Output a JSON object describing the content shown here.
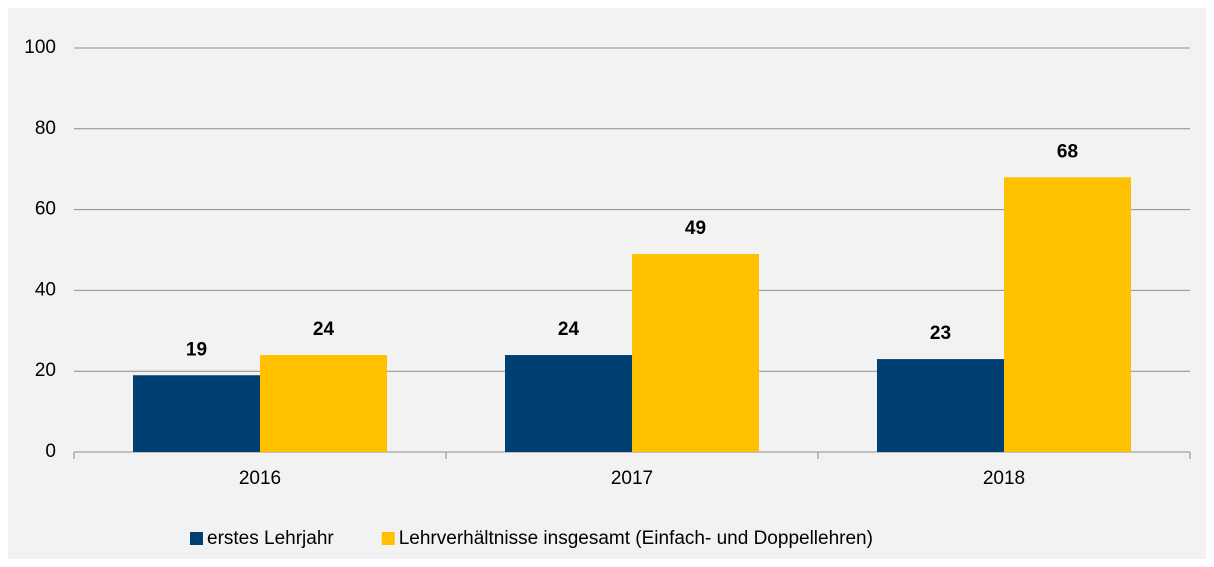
{
  "chart_data": {
    "type": "bar",
    "categories": [
      "2016",
      "2017",
      "2018"
    ],
    "series": [
      {
        "name": "erstes Lehrjahr",
        "color": "#003f72",
        "values": [
          19,
          24,
          23
        ]
      },
      {
        "name": "Lehrverhältnisse insgesamt (Einfach- und Doppellehren)",
        "color": "#ffc000",
        "values": [
          24,
          49,
          68
        ]
      }
    ],
    "ylim": [
      0,
      100
    ],
    "yticks": [
      0,
      20,
      40,
      60,
      80,
      100
    ],
    "grid": true,
    "legend": "bottom"
  }
}
